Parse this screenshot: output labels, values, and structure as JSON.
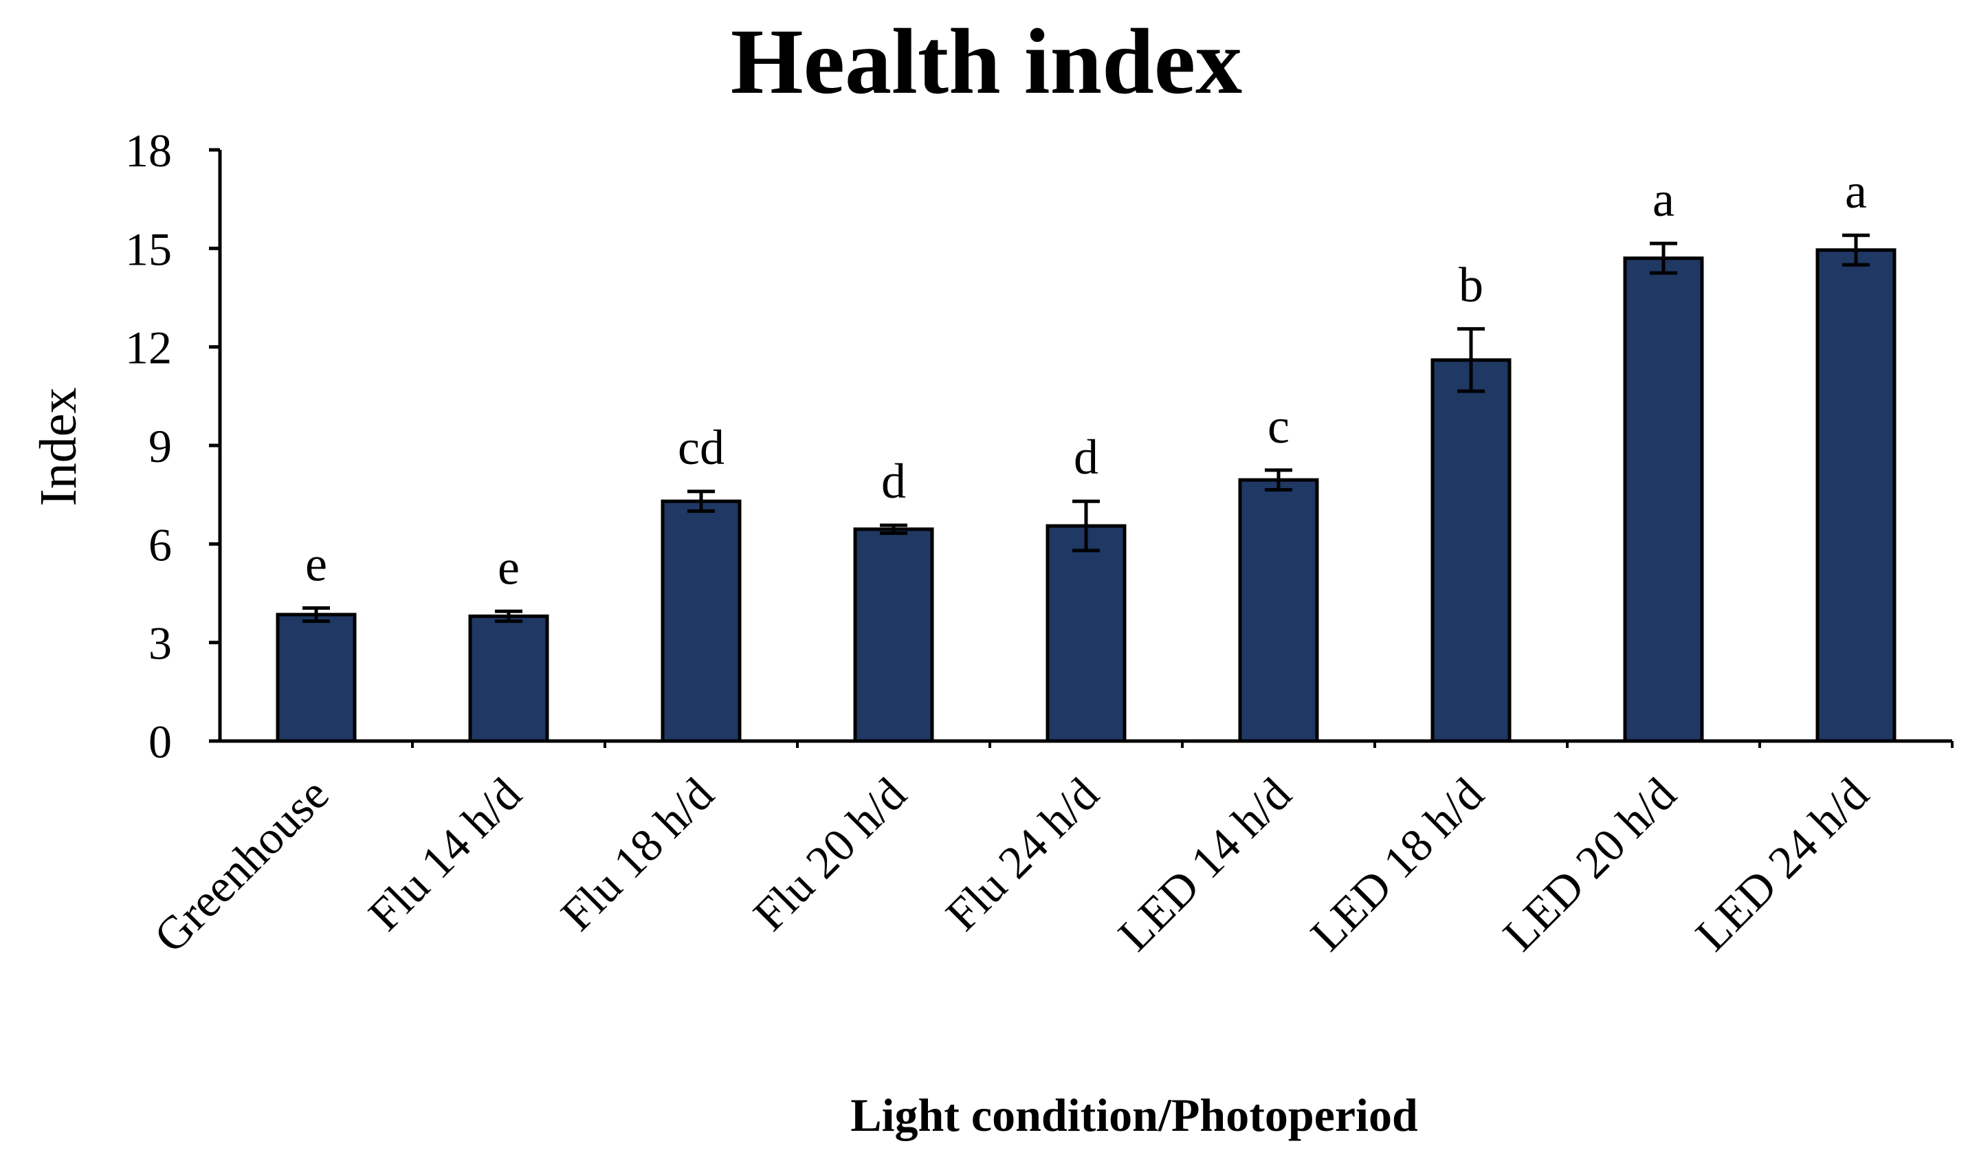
{
  "chart_data": {
    "type": "bar",
    "title": "Health index",
    "xlabel": "Light condition/Photoperiod",
    "ylabel": "Index",
    "ylim": [
      0,
      18
    ],
    "yticks": [
      0,
      3,
      6,
      9,
      12,
      15,
      18
    ],
    "grid": false,
    "legend": "none",
    "bar_color": "#1f3864",
    "categories": [
      "Greenhouse",
      "Flu 14 h/d",
      "Flu 18 h/d",
      "Flu 20 h/d",
      "Flu 24 h/d",
      "LED 14 h/d",
      "LED 18 h/d",
      "LED 20 h/d",
      "LED 24 h/d"
    ],
    "values": [
      3.85,
      3.8,
      7.3,
      6.45,
      6.55,
      7.95,
      11.6,
      14.7,
      14.95
    ],
    "errors": [
      0.2,
      0.15,
      0.3,
      0.12,
      0.75,
      0.3,
      0.95,
      0.45,
      0.45
    ],
    "significance": [
      "e",
      "e",
      "cd",
      "d",
      "d",
      "c",
      "b",
      "a",
      "a"
    ]
  }
}
